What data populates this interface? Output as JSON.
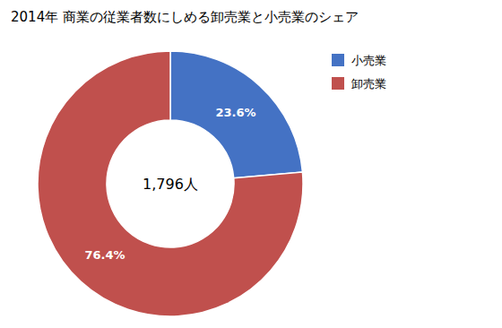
{
  "chart_data": {
    "type": "pie",
    "title": "2014年 商業の従業者数にしめる卸売業と小売業のシェア",
    "categories": [
      "小売業",
      "卸売業"
    ],
    "values": [
      23.6,
      76.4
    ],
    "value_labels": [
      "23.6%",
      "76.4%"
    ],
    "colors": [
      "#4472C4",
      "#C0504D"
    ],
    "data_labels": true,
    "legend": "right",
    "annotations": [
      "1,796人"
    ]
  }
}
